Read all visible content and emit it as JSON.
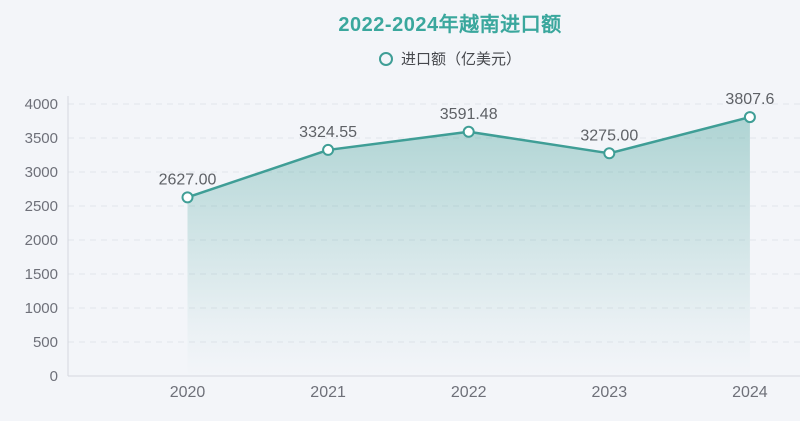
{
  "page": {
    "background": "#f3f5f9"
  },
  "header": {
    "title": "2022-2024年越南进口额",
    "title_color": "#3aa79d"
  },
  "legend": {
    "label": "进口额（亿美元）"
  },
  "chart_data": {
    "type": "area",
    "title": "2022-2024年越南进口额",
    "series_name": "进口额（亿美元）",
    "categories": [
      "2020",
      "2021",
      "2022",
      "2023",
      "2024"
    ],
    "values": [
      2627.0,
      3324.55,
      3591.48,
      3275.0,
      3807.6
    ],
    "value_labels": [
      "2627.00",
      "3324.55",
      "3591.48",
      "3275.00",
      "3807.6"
    ],
    "xlabel": "",
    "ylabel": "",
    "ylim": [
      0,
      4000
    ],
    "y_tick_step": 500,
    "y_tick_labels": [
      "0",
      "500",
      "1000",
      "1500",
      "2000",
      "2500",
      "3000",
      "3500",
      "4000"
    ],
    "grid": "dashed-horizontal",
    "legend_position": "top-center",
    "colors": {
      "line": "#3f9e96",
      "marker_fill": "#ffffff",
      "area_top": "rgba(63,158,150,0.40)",
      "area_mid": "rgba(63,158,150,0.05)",
      "area_bottom": "rgba(63,158,150,0)",
      "axis": "#d4d8df",
      "grid": "#e2e5eb",
      "tick_text": "#6e7079",
      "data_label": "#5e6166"
    }
  }
}
